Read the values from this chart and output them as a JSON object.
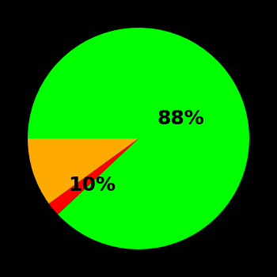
{
  "slices": [
    88,
    2,
    10
  ],
  "colors": [
    "#00ff00",
    "#ff0000",
    "#ffaa00"
  ],
  "labels": [
    "88%",
    "",
    "10%"
  ],
  "background_color": "#000000",
  "label_fontsize": 18,
  "label_color": "#000000",
  "startangle": 180,
  "figsize": [
    3.5,
    3.5
  ],
  "dpi": 100
}
